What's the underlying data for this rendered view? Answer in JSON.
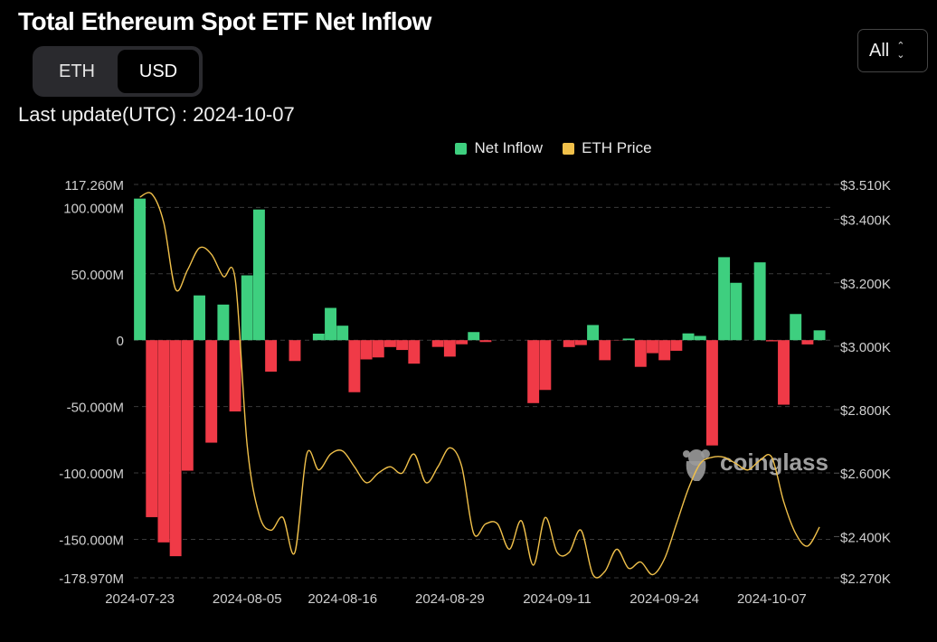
{
  "header": {
    "title": "Total Ethereum Spot ETF Net Inflow",
    "last_update": "Last update(UTC) : 2024-10-07"
  },
  "unit_toggle": {
    "options": [
      "ETH",
      "USD"
    ],
    "selected": "USD"
  },
  "range_select": {
    "value": "All"
  },
  "colors": {
    "positive": "#3ecf7f",
    "negative": "#f03a47",
    "price_line": "#f0c04a",
    "background": "#000000"
  },
  "watermark": {
    "text": "coinglass"
  },
  "chart_data": {
    "type": "bar",
    "legend": [
      {
        "name": "Net Inflow",
        "color": "#3ecf7f"
      },
      {
        "name": "ETH Price",
        "color": "#f0c04a"
      }
    ],
    "x_tick_labels": [
      "2024-07-23",
      "2024-08-05",
      "2024-08-16",
      "2024-08-29",
      "2024-09-11",
      "2024-09-24",
      "2024-10-07"
    ],
    "x_tick_indices": [
      0,
      9,
      17,
      26,
      35,
      44,
      53
    ],
    "left_axis": {
      "ylim": [
        -178.97,
        117.26
      ],
      "tick_values": [
        117.26,
        100,
        50,
        0,
        -50,
        -100,
        -150,
        -178.97
      ],
      "tick_labels": [
        "117.260M",
        "100.000M",
        "50.000M",
        "0",
        "-50.000M",
        "-100.000M",
        "-150.000M",
        "-178.970M"
      ]
    },
    "right_axis": {
      "ylim": [
        2270,
        3510
      ],
      "tick_values": [
        3510,
        3400,
        3200,
        3000,
        2800,
        2600,
        2400,
        2270
      ],
      "tick_labels": [
        "$3.510K",
        "$3.400K",
        "$3.200K",
        "$3.000K",
        "$2.800K",
        "$2.600K",
        "$2.400K",
        "$2.270K"
      ]
    },
    "series": [
      {
        "name": "Net Inflow",
        "unit": "USD millions",
        "values": [
          106.6,
          -133.3,
          -152.3,
          -162.7,
          -98.3,
          33.7,
          -77.2,
          26.8,
          -53.7,
          48.8,
          98.4,
          -23.7,
          0,
          -15.7,
          0,
          4.9,
          24.3,
          10.9,
          -39.2,
          -14.5,
          -13.0,
          -5.2,
          -7.4,
          -17.7,
          0,
          -5.1,
          -12.4,
          -3.1,
          6.1,
          -1.4,
          0,
          0,
          0,
          -47.4,
          -37.5,
          0,
          -5.2,
          -3.7,
          11.4,
          -15.1,
          -0.2,
          1.2,
          -20.1,
          -9.8,
          -15.1,
          -8.0,
          5.1,
          3.2,
          -79.3,
          62.5,
          43.2,
          0,
          58.6,
          -0.9,
          -48.6,
          19.7,
          -3.2,
          7.4
        ]
      },
      {
        "name": "ETH Price",
        "unit": "USD",
        "values": [
          3470,
          3480,
          3390,
          3180,
          3240,
          3310,
          3290,
          3220,
          3210,
          2690,
          2470,
          2420,
          2460,
          2350,
          2660,
          2610,
          2660,
          2670,
          2620,
          2570,
          2600,
          2620,
          2600,
          2660,
          2570,
          2620,
          2680,
          2620,
          2410,
          2440,
          2440,
          2360,
          2450,
          2310,
          2460,
          2350,
          2350,
          2420,
          2280,
          2290,
          2360,
          2300,
          2320,
          2280,
          2330,
          2440,
          2550,
          2630,
          2650,
          2650,
          2630,
          2610,
          2640,
          2650,
          2510,
          2410,
          2370,
          2430
        ]
      }
    ]
  }
}
